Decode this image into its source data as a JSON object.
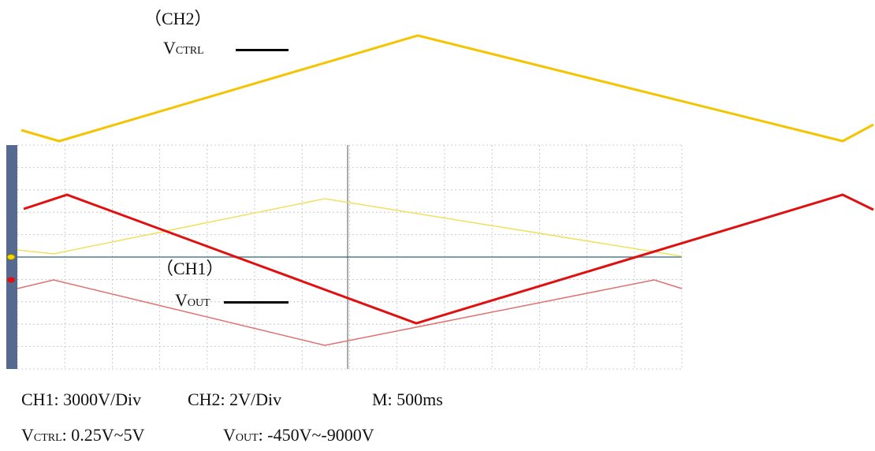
{
  "chart_data": {
    "type": "line",
    "ch2_label": "（CH2）",
    "ch1_label": "（CH1）",
    "vctrl_main": "V",
    "vctrl_sub": "CTRL",
    "vout_main": "V",
    "vout_sub": "OUT",
    "series": [
      {
        "name": "VCTRL",
        "color": "#f5c400",
        "x": [
          0,
          1,
          2,
          3
        ],
        "y": [
          0.25,
          5,
          0.25,
          0.5
        ]
      },
      {
        "name": "VOUT",
        "color": "#e01010",
        "x": [
          0,
          1,
          2,
          3
        ],
        "y": [
          -450,
          -9000,
          -450,
          -1000
        ]
      }
    ],
    "colors": {
      "ch2": "#f5c400",
      "ch1": "#e01010",
      "grid": "#b9bfc4",
      "marker_bar": "#56698f"
    },
    "grid": true,
    "caption": {
      "line1": {
        "ch1": "CH1: 3000V/Div",
        "ch2": "CH2: 2V/Div",
        "m": "M: 500ms"
      },
      "line2": {
        "vctrl_main": "V",
        "vctrl_sub": "CTRL",
        "vctrl_range": ": 0.25V~5V",
        "vout_main": "V",
        "vout_sub": "OUT",
        "vout_range": ": -450V~-9000V"
      }
    }
  }
}
